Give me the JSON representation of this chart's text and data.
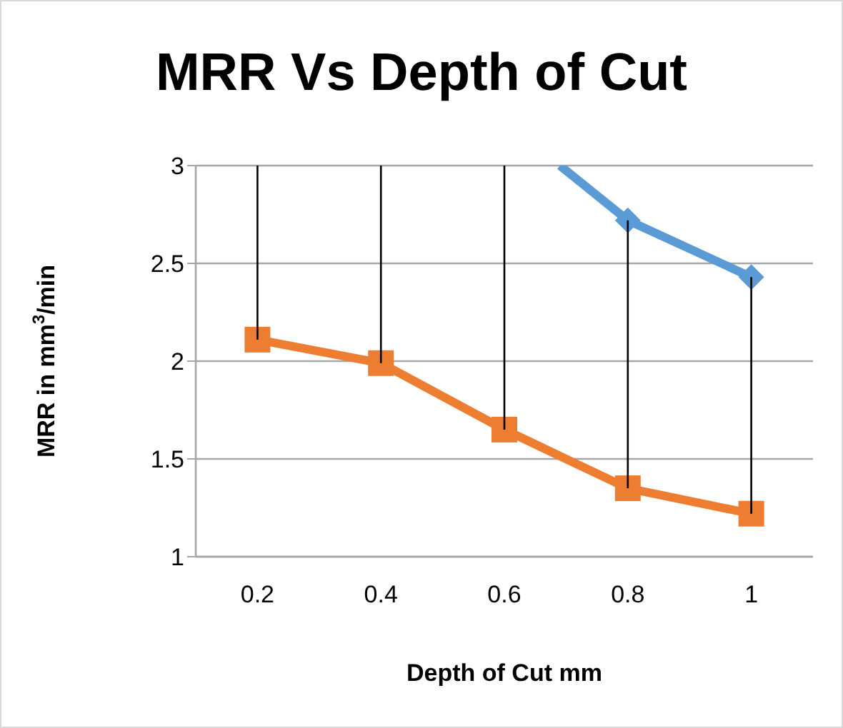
{
  "chart_data": {
    "type": "line",
    "title": "MRR Vs Depth of Cut",
    "xlabel": "Depth of Cut mm",
    "ylabel": "MRR in mm$^{3}$/min",
    "xlim": [
      0.1,
      1.1
    ],
    "xticks": [
      0.2,
      0.4,
      0.6,
      0.8,
      1
    ],
    "ylim": [
      1,
      3
    ],
    "yticks": [
      1,
      1.5,
      2,
      2.5,
      3
    ],
    "grid": "y",
    "legend": false,
    "series": [
      {
        "color": "#5b9bd5",
        "marker": "diamond",
        "x": [
          0.69,
          0.8,
          1
        ],
        "values": [
          3,
          2.72,
          2.43
        ]
      },
      {
        "color": "#ed7d31",
        "marker": "square",
        "x": [
          0.2,
          0.4,
          0.6,
          0.8,
          1
        ],
        "values": [
          2.11,
          1.99,
          1.65,
          1.35,
          1.22
        ],
        "errors": [
          [
            2.11,
            3
          ],
          [
            1.99,
            3
          ],
          [
            1.65,
            3
          ],
          [
            1.35,
            2.72
          ],
          [
            1.22,
            2.43
          ]
        ]
      }
    ]
  }
}
